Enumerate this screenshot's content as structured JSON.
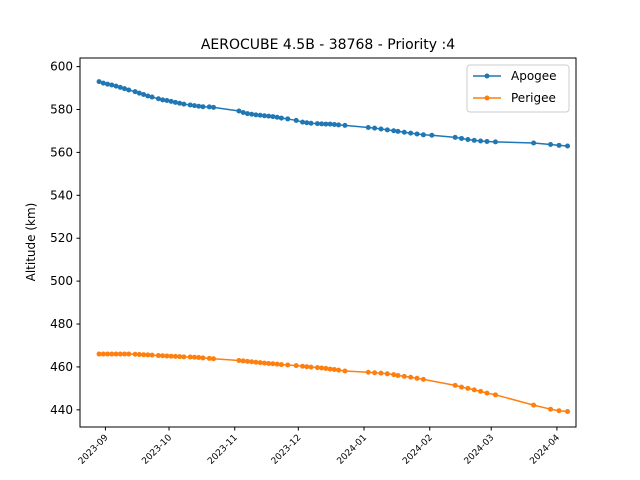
{
  "chart_data": {
    "type": "line",
    "title": "AEROCUBE 4.5B - 38768 - Priority :4",
    "xlabel": "",
    "ylabel": "Altitude (km)",
    "ylim": [
      432,
      604
    ],
    "xlim": [
      "2023-08-20",
      "2024-04-10"
    ],
    "yticks": [
      440,
      460,
      480,
      500,
      520,
      540,
      560,
      580,
      600
    ],
    "xticks": [
      "2023-09-01",
      "2023-10-01",
      "2023-11-01",
      "2023-12-01",
      "2024-01-01",
      "2024-02-01",
      "2024-03-01",
      "2024-04-01"
    ],
    "xtick_labels": [
      "2023-09",
      "2023-10",
      "2023-11",
      "2023-12",
      "2024-01",
      "2024-02",
      "2024-03",
      "2024-04"
    ],
    "legend_position": "top-right",
    "grid": false,
    "series": [
      {
        "name": "Apogee",
        "color": "#1f77b4",
        "marker": "circle",
        "points": [
          [
            "2023-08-29",
            593.0
          ],
          [
            "2023-08-31",
            592.3
          ],
          [
            "2023-09-02",
            591.8
          ],
          [
            "2023-09-04",
            591.4
          ],
          [
            "2023-09-06",
            590.9
          ],
          [
            "2023-09-08",
            590.3
          ],
          [
            "2023-09-10",
            589.7
          ],
          [
            "2023-09-12",
            589.1
          ],
          [
            "2023-09-15",
            588.3
          ],
          [
            "2023-09-17",
            587.6
          ],
          [
            "2023-09-19",
            587.0
          ],
          [
            "2023-09-21",
            586.3
          ],
          [
            "2023-09-23",
            585.8
          ],
          [
            "2023-09-26",
            585.0
          ],
          [
            "2023-09-28",
            584.5
          ],
          [
            "2023-09-30",
            584.2
          ],
          [
            "2023-10-02",
            583.8
          ],
          [
            "2023-10-04",
            583.3
          ],
          [
            "2023-10-06",
            582.9
          ],
          [
            "2023-10-08",
            582.5
          ],
          [
            "2023-10-11",
            582.1
          ],
          [
            "2023-10-13",
            581.8
          ],
          [
            "2023-10-15",
            581.5
          ],
          [
            "2023-10-17",
            581.3
          ],
          [
            "2023-10-20",
            581.2
          ],
          [
            "2023-10-22",
            581.0
          ],
          [
            "2023-11-03",
            579.3
          ],
          [
            "2023-11-05",
            578.6
          ],
          [
            "2023-11-07",
            578.1
          ],
          [
            "2023-11-09",
            577.8
          ],
          [
            "2023-11-11",
            577.5
          ],
          [
            "2023-11-13",
            577.3
          ],
          [
            "2023-11-15",
            577.1
          ],
          [
            "2023-11-17",
            576.9
          ],
          [
            "2023-11-19",
            576.7
          ],
          [
            "2023-11-21",
            576.4
          ],
          [
            "2023-11-23",
            576.0
          ],
          [
            "2023-11-26",
            575.6
          ],
          [
            "2023-11-30",
            574.9
          ],
          [
            "2023-12-03",
            574.1
          ],
          [
            "2023-12-05",
            573.8
          ],
          [
            "2023-12-07",
            573.6
          ],
          [
            "2023-12-10",
            573.4
          ],
          [
            "2023-12-12",
            573.3
          ],
          [
            "2023-12-14",
            573.2
          ],
          [
            "2023-12-16",
            573.2
          ],
          [
            "2023-12-18",
            573.0
          ],
          [
            "2023-12-20",
            572.8
          ],
          [
            "2023-12-23",
            572.6
          ],
          [
            "2024-01-03",
            571.6
          ],
          [
            "2024-01-06",
            571.3
          ],
          [
            "2024-01-09",
            570.9
          ],
          [
            "2024-01-12",
            570.5
          ],
          [
            "2024-01-15",
            570.1
          ],
          [
            "2024-01-17",
            569.8
          ],
          [
            "2024-01-20",
            569.4
          ],
          [
            "2024-01-23",
            569.0
          ],
          [
            "2024-01-26",
            568.6
          ],
          [
            "2024-01-29",
            568.2
          ],
          [
            "2024-02-02",
            568.0
          ],
          [
            "2024-02-13",
            567.0
          ],
          [
            "2024-02-16",
            566.5
          ],
          [
            "2024-02-19",
            566.0
          ],
          [
            "2024-02-22",
            565.6
          ],
          [
            "2024-02-25",
            565.3
          ],
          [
            "2024-02-28",
            565.1
          ],
          [
            "2024-03-03",
            564.9
          ],
          [
            "2024-03-21",
            564.4
          ],
          [
            "2024-03-29",
            563.7
          ],
          [
            "2024-04-02",
            563.3
          ],
          [
            "2024-04-06",
            563.0
          ]
        ]
      },
      {
        "name": "Perigee",
        "color": "#ff7f0e",
        "marker": "circle",
        "points": [
          [
            "2023-08-29",
            466.0
          ],
          [
            "2023-08-31",
            466.0
          ],
          [
            "2023-09-02",
            466.0
          ],
          [
            "2023-09-04",
            466.0
          ],
          [
            "2023-09-06",
            466.0
          ],
          [
            "2023-09-08",
            466.0
          ],
          [
            "2023-09-10",
            466.0
          ],
          [
            "2023-09-12",
            466.0
          ],
          [
            "2023-09-15",
            465.9
          ],
          [
            "2023-09-17",
            465.8
          ],
          [
            "2023-09-19",
            465.7
          ],
          [
            "2023-09-21",
            465.6
          ],
          [
            "2023-09-23",
            465.5
          ],
          [
            "2023-09-26",
            465.3
          ],
          [
            "2023-09-28",
            465.2
          ],
          [
            "2023-09-30",
            465.1
          ],
          [
            "2023-10-02",
            465.0
          ],
          [
            "2023-10-04",
            464.9
          ],
          [
            "2023-10-06",
            464.8
          ],
          [
            "2023-10-08",
            464.7
          ],
          [
            "2023-10-11",
            464.6
          ],
          [
            "2023-10-13",
            464.5
          ],
          [
            "2023-10-15",
            464.4
          ],
          [
            "2023-10-17",
            464.2
          ],
          [
            "2023-10-20",
            464.0
          ],
          [
            "2023-10-22",
            463.8
          ],
          [
            "2023-11-03",
            463.0
          ],
          [
            "2023-11-05",
            462.8
          ],
          [
            "2023-11-07",
            462.6
          ],
          [
            "2023-11-09",
            462.4
          ],
          [
            "2023-11-11",
            462.2
          ],
          [
            "2023-11-13",
            462.0
          ],
          [
            "2023-11-15",
            461.8
          ],
          [
            "2023-11-17",
            461.6
          ],
          [
            "2023-11-19",
            461.5
          ],
          [
            "2023-11-21",
            461.3
          ],
          [
            "2023-11-23",
            461.1
          ],
          [
            "2023-11-26",
            460.9
          ],
          [
            "2023-11-30",
            460.6
          ],
          [
            "2023-12-03",
            460.3
          ],
          [
            "2023-12-05",
            460.1
          ],
          [
            "2023-12-07",
            459.9
          ],
          [
            "2023-12-10",
            459.7
          ],
          [
            "2023-12-12",
            459.5
          ],
          [
            "2023-12-14",
            459.3
          ],
          [
            "2023-12-16",
            459.0
          ],
          [
            "2023-12-18",
            458.8
          ],
          [
            "2023-12-20",
            458.5
          ],
          [
            "2023-12-23",
            458.1
          ],
          [
            "2024-01-03",
            457.5
          ],
          [
            "2024-01-06",
            457.3
          ],
          [
            "2024-01-09",
            457.1
          ],
          [
            "2024-01-12",
            456.8
          ],
          [
            "2024-01-15",
            456.4
          ],
          [
            "2024-01-17",
            456.0
          ],
          [
            "2024-01-20",
            455.6
          ],
          [
            "2024-01-23",
            455.2
          ],
          [
            "2024-01-26",
            454.7
          ],
          [
            "2024-01-29",
            454.2
          ],
          [
            "2024-02-13",
            451.4
          ],
          [
            "2024-02-16",
            450.6
          ],
          [
            "2024-02-19",
            450.0
          ],
          [
            "2024-02-22",
            449.3
          ],
          [
            "2024-02-25",
            448.6
          ],
          [
            "2024-02-28",
            447.8
          ],
          [
            "2024-03-03",
            447.0
          ],
          [
            "2024-03-21",
            442.2
          ],
          [
            "2024-03-29",
            440.3
          ],
          [
            "2024-04-02",
            439.6
          ],
          [
            "2024-04-06",
            439.2
          ]
        ]
      }
    ]
  }
}
